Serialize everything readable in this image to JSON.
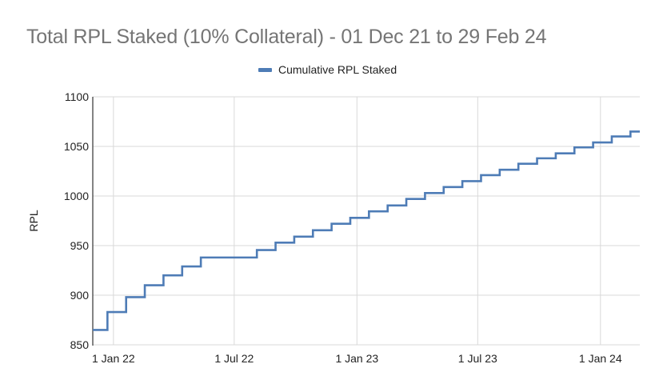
{
  "chart_data": {
    "type": "line",
    "title": "Total RPL Staked (10% Collateral) - 01 Dec 21 to 29 Feb 24",
    "xlabel": "",
    "ylabel": "RPL",
    "ylim": [
      850,
      1100
    ],
    "xrange": [
      "2021-12-01",
      "2024-02-29"
    ],
    "grid": true,
    "legend_position": "top",
    "step": true,
    "yticks": [
      850,
      900,
      950,
      1000,
      1050,
      1100
    ],
    "xticks": [
      {
        "label": "1 Jan 22",
        "date": "2022-01-01"
      },
      {
        "label": "1 Jul 22",
        "date": "2022-07-01"
      },
      {
        "label": "1 Jan 23",
        "date": "2023-01-01"
      },
      {
        "label": "1 Jul 23",
        "date": "2023-07-01"
      },
      {
        "label": "1 Jan 24",
        "date": "2024-01-01"
      }
    ],
    "series": [
      {
        "name": "Cumulative RPL Staked",
        "color": "#4e7cb6",
        "points": [
          {
            "x": "2021-12-01",
            "y": 865
          },
          {
            "x": "2021-12-23",
            "y": 883
          },
          {
            "x": "2022-01-20",
            "y": 898
          },
          {
            "x": "2022-02-17",
            "y": 910
          },
          {
            "x": "2022-03-17",
            "y": 920
          },
          {
            "x": "2022-04-14",
            "y": 929
          },
          {
            "x": "2022-05-12",
            "y": 938
          },
          {
            "x": "2022-08-04",
            "y": 945.5
          },
          {
            "x": "2022-09-01",
            "y": 953
          },
          {
            "x": "2022-09-29",
            "y": 959
          },
          {
            "x": "2022-10-27",
            "y": 965.5
          },
          {
            "x": "2022-11-24",
            "y": 972
          },
          {
            "x": "2022-12-22",
            "y": 978
          },
          {
            "x": "2023-01-19",
            "y": 984.5
          },
          {
            "x": "2023-02-16",
            "y": 990.5
          },
          {
            "x": "2023-03-16",
            "y": 997
          },
          {
            "x": "2023-04-13",
            "y": 1003
          },
          {
            "x": "2023-05-11",
            "y": 1009
          },
          {
            "x": "2023-06-08",
            "y": 1015
          },
          {
            "x": "2023-07-06",
            "y": 1021
          },
          {
            "x": "2023-08-03",
            "y": 1026.5
          },
          {
            "x": "2023-08-31",
            "y": 1032.5
          },
          {
            "x": "2023-09-28",
            "y": 1038
          },
          {
            "x": "2023-10-26",
            "y": 1043
          },
          {
            "x": "2023-11-23",
            "y": 1049
          },
          {
            "x": "2023-12-21",
            "y": 1054
          },
          {
            "x": "2024-01-18",
            "y": 1060
          },
          {
            "x": "2024-02-15",
            "y": 1065
          },
          {
            "x": "2024-02-29",
            "y": 1065
          }
        ]
      }
    ]
  },
  "colors": {
    "title": "#757575",
    "gridline": "#d9d9d9",
    "axis": "#333333",
    "series": "#4e7cb6"
  }
}
